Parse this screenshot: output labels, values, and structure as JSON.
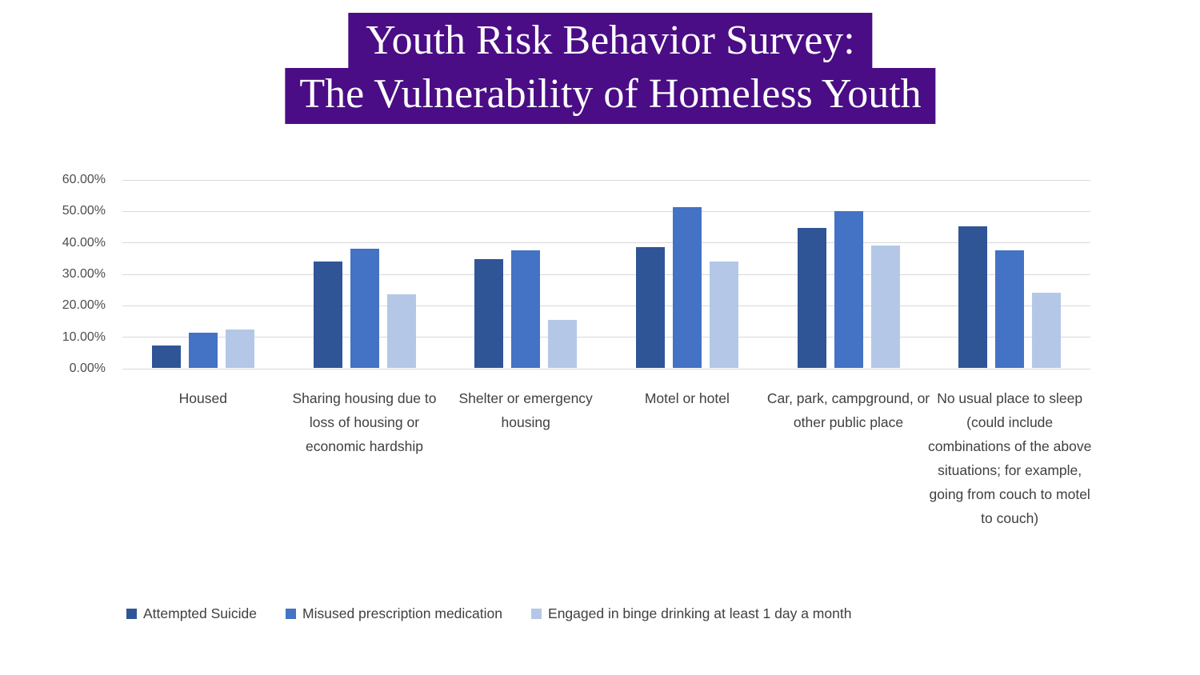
{
  "title": {
    "line1": "Youth Risk Behavior Survey:",
    "line2": "The Vulnerability of Homeless Youth",
    "bg_color": "#4A0D85",
    "text_color": "#FFFFFF"
  },
  "chart_data": {
    "type": "bar",
    "title": "Youth Risk Behavior Survey: The Vulnerability of Homeless Youth",
    "categories": [
      "Housed",
      "Sharing housing due to loss of housing or economic hardship",
      "Shelter or emergency housing",
      "Motel or hotel",
      "Car, park, campground, or other public place",
      "No usual place to sleep (could include combinations of the above situations; for example, going from couch to motel to couch)"
    ],
    "series": [
      {
        "name": "Attempted Suicide",
        "color": "#2F5597",
        "values": [
          7.0,
          33.7,
          34.7,
          38.4,
          44.5,
          45.0
        ]
      },
      {
        "name": "Misused prescription medication",
        "color": "#4472C4",
        "values": [
          11.1,
          38.0,
          37.5,
          51.2,
          49.9,
          37.4
        ]
      },
      {
        "name": "Engaged in binge drinking at least 1 day a month",
        "color": "#B4C7E7",
        "values": [
          12.2,
          23.5,
          15.2,
          33.8,
          38.8,
          24.0
        ]
      }
    ],
    "xlabel": "",
    "ylabel": "",
    "ylim": [
      0,
      60
    ],
    "y_ticks": [
      "60.00%",
      "50.00%",
      "40.00%",
      "30.00%",
      "20.00%",
      "10.00%",
      "0.00%"
    ],
    "y_tick_values": [
      60,
      50,
      40,
      30,
      20,
      10,
      0
    ],
    "grid": true,
    "gridline_color": "#D9D9D9",
    "axis_text_color": "#404040",
    "legend_position": "bottom"
  }
}
